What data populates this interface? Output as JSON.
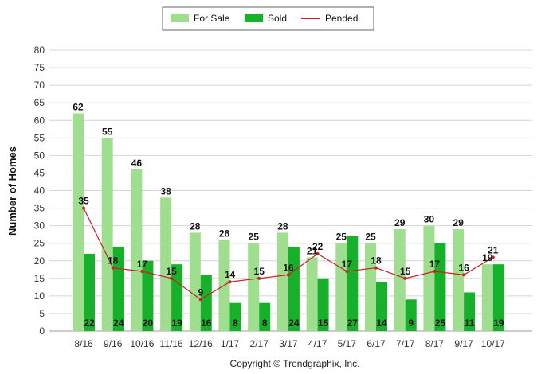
{
  "chart_data": {
    "type": "bar",
    "categories": [
      "8/16",
      "9/16",
      "10/16",
      "11/16",
      "12/16",
      "1/17",
      "2/17",
      "3/17",
      "4/17",
      "5/17",
      "6/17",
      "7/17",
      "8/17",
      "9/17",
      "10/17"
    ],
    "series": [
      {
        "name": "For Sale",
        "kind": "bar",
        "color": "#9ede8e",
        "values": [
          62,
          55,
          46,
          38,
          28,
          26,
          25,
          28,
          21,
          25,
          25,
          29,
          30,
          29,
          19
        ]
      },
      {
        "name": "Sold",
        "kind": "bar",
        "color": "#17b02b",
        "values": [
          22,
          24,
          20,
          19,
          16,
          8,
          8,
          24,
          15,
          27,
          14,
          9,
          25,
          11,
          19
        ]
      },
      {
        "name": "Pended",
        "kind": "line",
        "color": "#cc1f1f",
        "values": [
          35,
          18,
          17,
          15,
          9,
          14,
          15,
          16,
          22,
          17,
          18,
          15,
          17,
          16,
          21
        ]
      }
    ],
    "title": "",
    "xlabel": "",
    "ylabel": "Number of Homes",
    "ylim": [
      0,
      80
    ],
    "yticks": [
      "0",
      "5",
      "10",
      "15",
      "20",
      "25",
      "30",
      "35",
      "40",
      "45",
      "50",
      "55",
      "60",
      "65",
      "70",
      "75",
      "80"
    ],
    "grid": true,
    "legend_position": "top-center",
    "copyright": "Copyright © Trendgraphix, Inc."
  }
}
